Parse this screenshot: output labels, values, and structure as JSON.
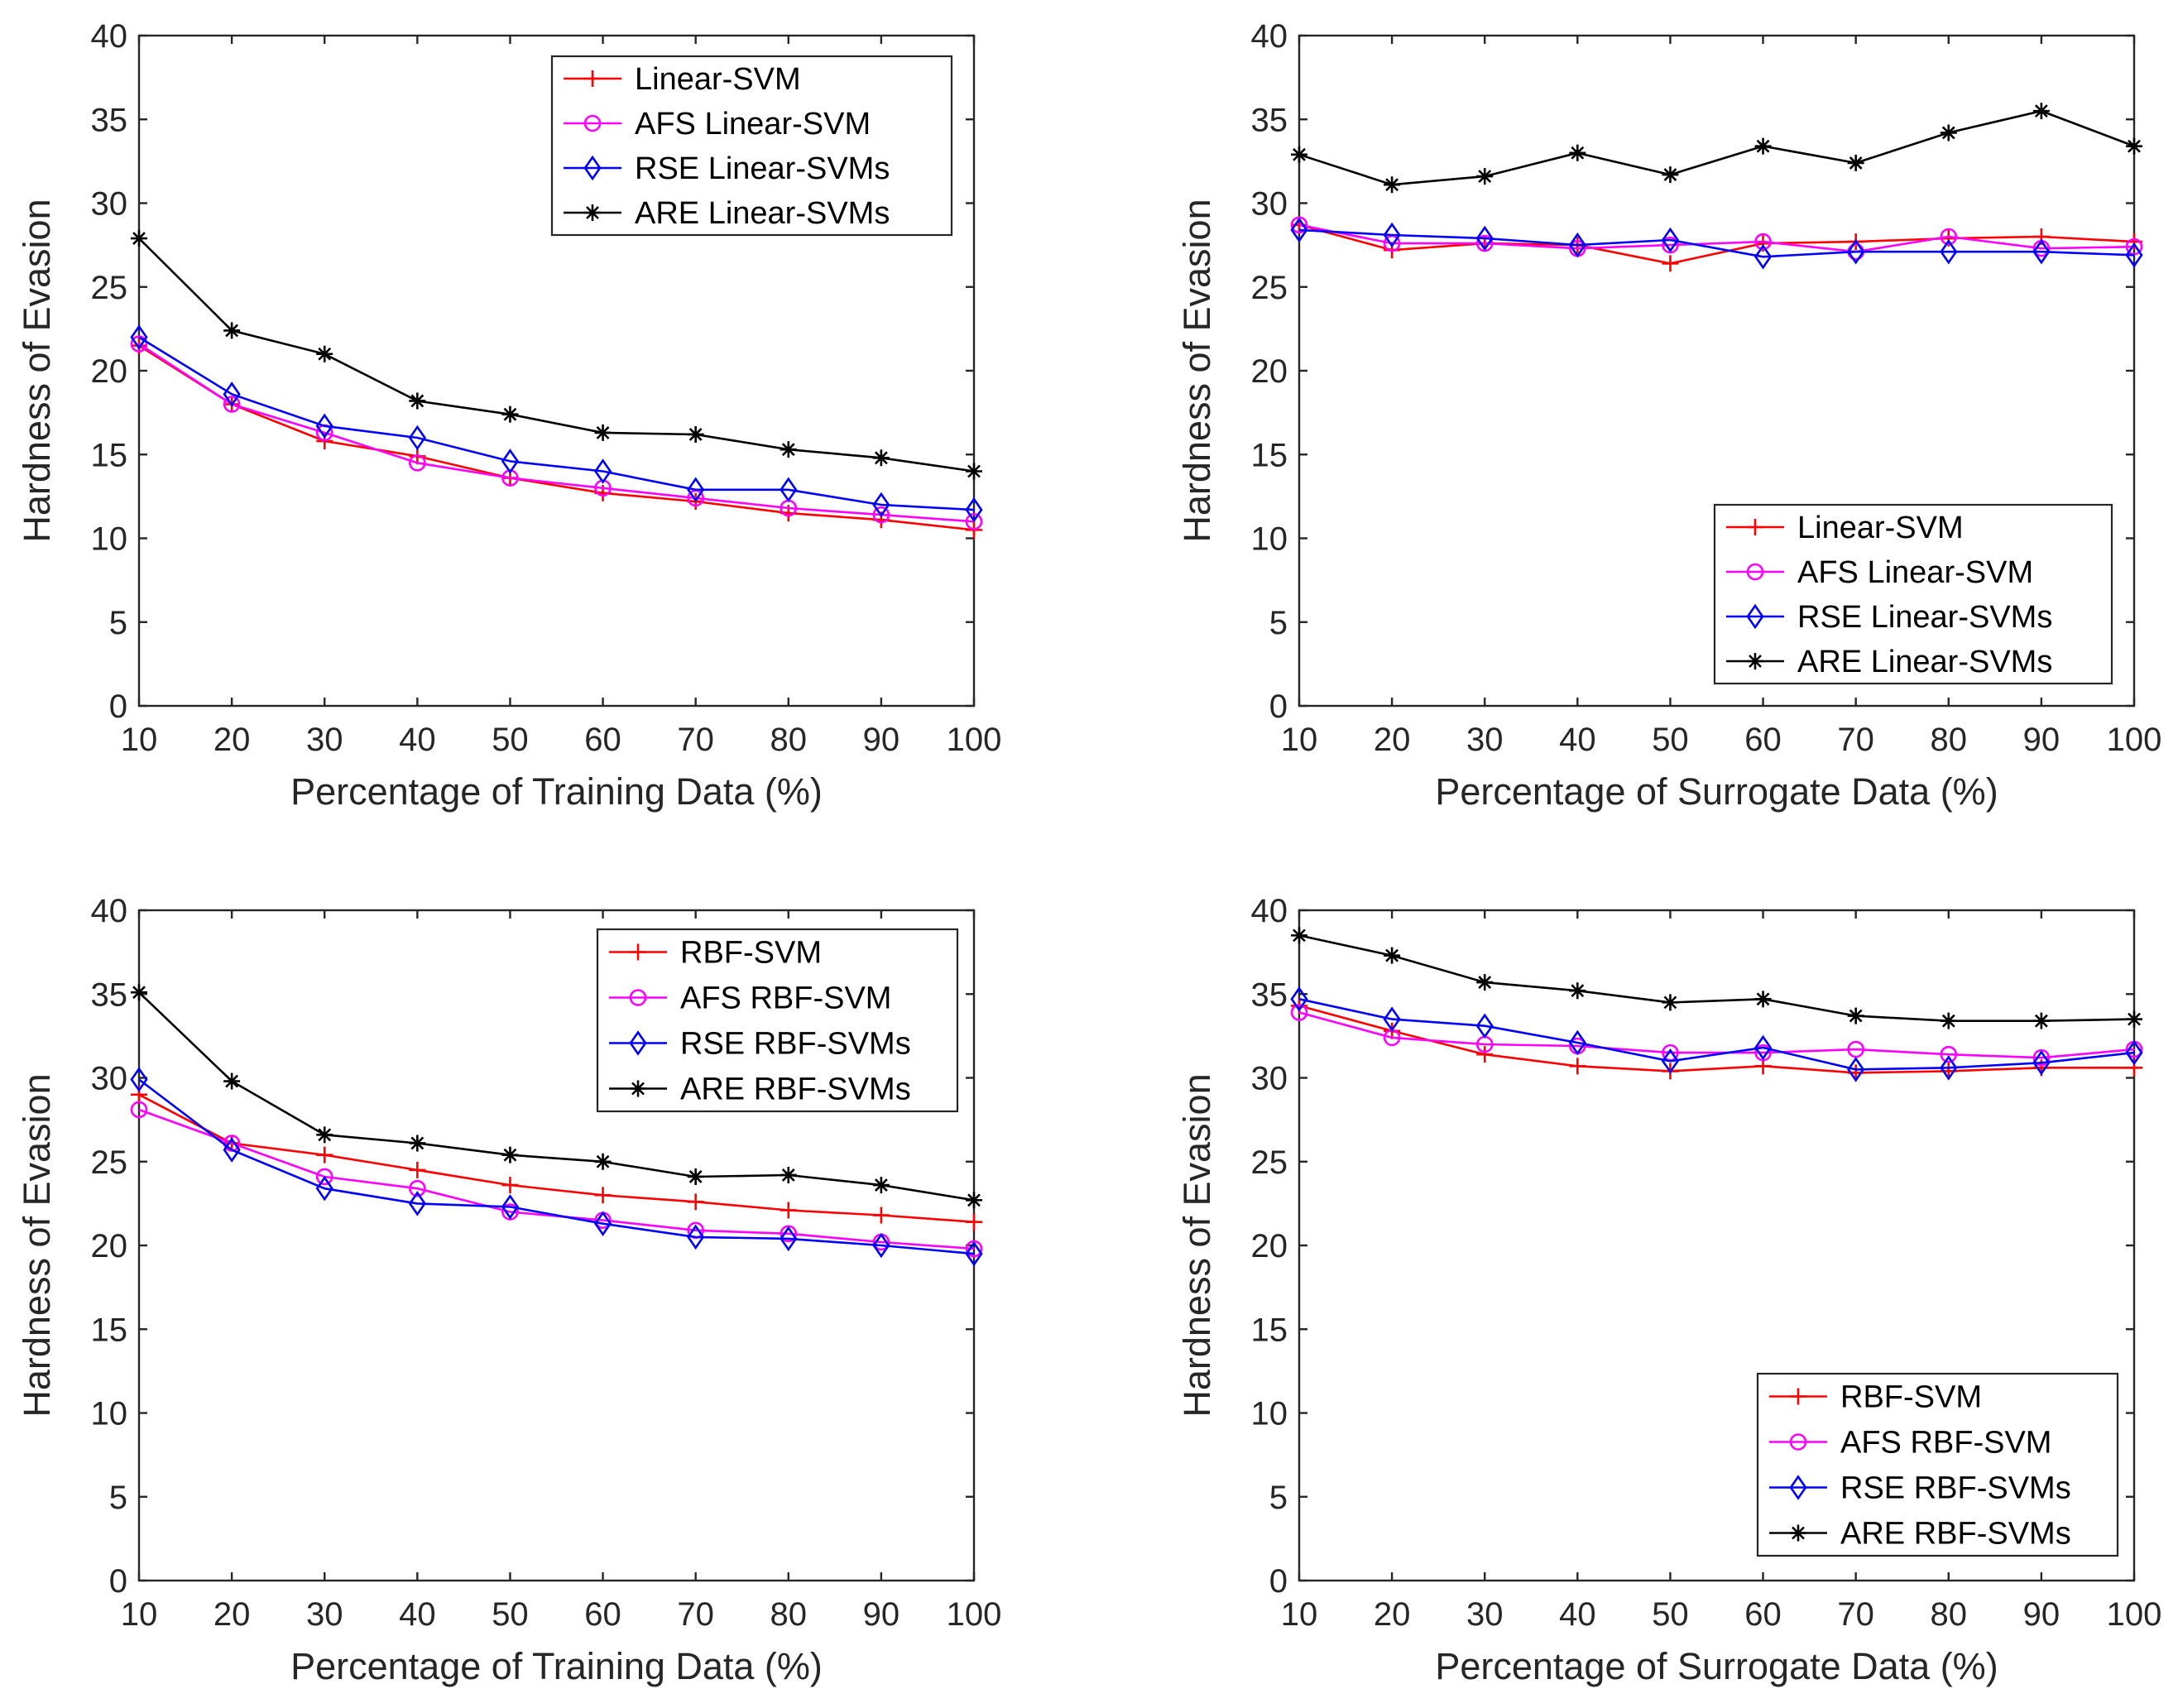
{
  "chart_data": [
    {
      "type": "line",
      "title": "",
      "xlabel": "Percentage of Training Data (%)",
      "ylabel": "Hardness of Evasion",
      "xlim": [
        10,
        100
      ],
      "ylim": [
        0,
        40
      ],
      "xticks": [
        10,
        20,
        30,
        40,
        50,
        60,
        70,
        80,
        90,
        100
      ],
      "yticks": [
        0,
        5,
        10,
        15,
        20,
        25,
        30,
        35,
        40
      ],
      "grid": false,
      "legend_position": "top-right",
      "x": [
        10,
        20,
        30,
        40,
        50,
        60,
        70,
        80,
        90,
        100
      ],
      "series": [
        {
          "name": "Linear-SVM",
          "marker": "plus",
          "color": "#ff0000",
          "values": [
            21.5,
            18.0,
            15.8,
            14.9,
            13.6,
            12.7,
            12.2,
            11.5,
            11.1,
            10.5
          ]
        },
        {
          "name": "AFS Linear-SVM",
          "marker": "circle",
          "color": "#ff00ff",
          "values": [
            21.6,
            18.0,
            16.3,
            14.5,
            13.6,
            13.0,
            12.4,
            11.8,
            11.4,
            11.0
          ]
        },
        {
          "name": "RSE Linear-SVMs",
          "marker": "diamond",
          "color": "#0000ff",
          "values": [
            22.0,
            18.6,
            16.7,
            16.0,
            14.6,
            14.0,
            12.9,
            12.9,
            12.0,
            11.7
          ]
        },
        {
          "name": "ARE Linear-SVMs",
          "marker": "asterisk",
          "color": "#000000",
          "values": [
            27.9,
            22.4,
            21.0,
            18.2,
            17.4,
            16.3,
            16.2,
            15.3,
            14.8,
            14.0
          ]
        }
      ]
    },
    {
      "type": "line",
      "title": "",
      "xlabel": "Percentage of Surrogate Data (%)",
      "ylabel": "Hardness of Evasion",
      "xlim": [
        10,
        100
      ],
      "ylim": [
        0,
        40
      ],
      "xticks": [
        10,
        20,
        30,
        40,
        50,
        60,
        70,
        80,
        90,
        100
      ],
      "yticks": [
        0,
        5,
        10,
        15,
        20,
        25,
        30,
        35,
        40
      ],
      "grid": false,
      "legend_position": "bottom-right",
      "x": [
        10,
        20,
        30,
        40,
        50,
        60,
        70,
        80,
        90,
        100
      ],
      "series": [
        {
          "name": "Linear-SVM",
          "marker": "plus",
          "color": "#ff0000",
          "values": [
            28.7,
            27.2,
            27.6,
            27.5,
            26.4,
            27.6,
            27.7,
            27.9,
            28.0,
            27.7
          ]
        },
        {
          "name": "AFS Linear-SVM",
          "marker": "circle",
          "color": "#ff00ff",
          "values": [
            28.7,
            27.6,
            27.6,
            27.3,
            27.5,
            27.7,
            27.1,
            28.0,
            27.3,
            27.4
          ]
        },
        {
          "name": "RSE Linear-SVMs",
          "marker": "diamond",
          "color": "#0000ff",
          "values": [
            28.4,
            28.1,
            27.9,
            27.5,
            27.8,
            26.8,
            27.1,
            27.1,
            27.1,
            26.9
          ]
        },
        {
          "name": "ARE Linear-SVMs",
          "marker": "asterisk",
          "color": "#000000",
          "values": [
            32.9,
            31.1,
            31.6,
            33.0,
            31.7,
            33.4,
            32.4,
            34.2,
            35.5,
            33.4
          ]
        }
      ]
    },
    {
      "type": "line",
      "title": "",
      "xlabel": "Percentage of Training Data (%)",
      "ylabel": "Hardness of Evasion",
      "xlim": [
        10,
        100
      ],
      "ylim": [
        0,
        40
      ],
      "xticks": [
        10,
        20,
        30,
        40,
        50,
        60,
        70,
        80,
        90,
        100
      ],
      "yticks": [
        0,
        5,
        10,
        15,
        20,
        25,
        30,
        35,
        40
      ],
      "grid": false,
      "legend_position": "top-right",
      "x": [
        10,
        20,
        30,
        40,
        50,
        60,
        70,
        80,
        90,
        100
      ],
      "series": [
        {
          "name": "RBF-SVM",
          "marker": "plus",
          "color": "#ff0000",
          "values": [
            29.0,
            26.1,
            25.4,
            24.5,
            23.6,
            23.0,
            22.6,
            22.1,
            21.8,
            21.4
          ]
        },
        {
          "name": "AFS RBF-SVM",
          "marker": "circle",
          "color": "#ff00ff",
          "values": [
            28.1,
            26.1,
            24.1,
            23.4,
            22.0,
            21.5,
            20.9,
            20.7,
            20.2,
            19.8
          ]
        },
        {
          "name": "RSE RBF-SVMs",
          "marker": "diamond",
          "color": "#0000ff",
          "values": [
            29.9,
            25.7,
            23.4,
            22.5,
            22.3,
            21.3,
            20.5,
            20.4,
            20.0,
            19.5
          ]
        },
        {
          "name": "ARE RBF-SVMs",
          "marker": "asterisk",
          "color": "#000000",
          "values": [
            35.1,
            29.8,
            26.6,
            26.1,
            25.4,
            25.0,
            24.1,
            24.2,
            23.6,
            22.7
          ]
        }
      ]
    },
    {
      "type": "line",
      "title": "",
      "xlabel": "Percentage of Surrogate Data (%)",
      "ylabel": "Hardness of Evasion",
      "xlim": [
        10,
        100
      ],
      "ylim": [
        0,
        40
      ],
      "xticks": [
        10,
        20,
        30,
        40,
        50,
        60,
        70,
        80,
        90,
        100
      ],
      "yticks": [
        0,
        5,
        10,
        15,
        20,
        25,
        30,
        35,
        40
      ],
      "grid": false,
      "legend_position": "bottom-right",
      "x": [
        10,
        20,
        30,
        40,
        50,
        60,
        70,
        80,
        90,
        100
      ],
      "series": [
        {
          "name": "RBF-SVM",
          "marker": "plus",
          "color": "#ff0000",
          "values": [
            34.3,
            32.8,
            31.4,
            30.7,
            30.4,
            30.7,
            30.3,
            30.4,
            30.6,
            30.6
          ]
        },
        {
          "name": "AFS RBF-SVM",
          "marker": "circle",
          "color": "#ff00ff",
          "values": [
            33.9,
            32.4,
            32.0,
            31.9,
            31.5,
            31.5,
            31.7,
            31.4,
            31.2,
            31.7
          ]
        },
        {
          "name": "RSE RBF-SVMs",
          "marker": "diamond",
          "color": "#0000ff",
          "values": [
            34.7,
            33.5,
            33.1,
            32.1,
            31.0,
            31.8,
            30.5,
            30.6,
            30.9,
            31.5
          ]
        },
        {
          "name": "ARE RBF-SVMs",
          "marker": "asterisk",
          "color": "#000000",
          "values": [
            38.5,
            37.3,
            35.7,
            35.2,
            34.5,
            34.7,
            33.7,
            33.4,
            33.4,
            33.5
          ]
        }
      ]
    }
  ]
}
